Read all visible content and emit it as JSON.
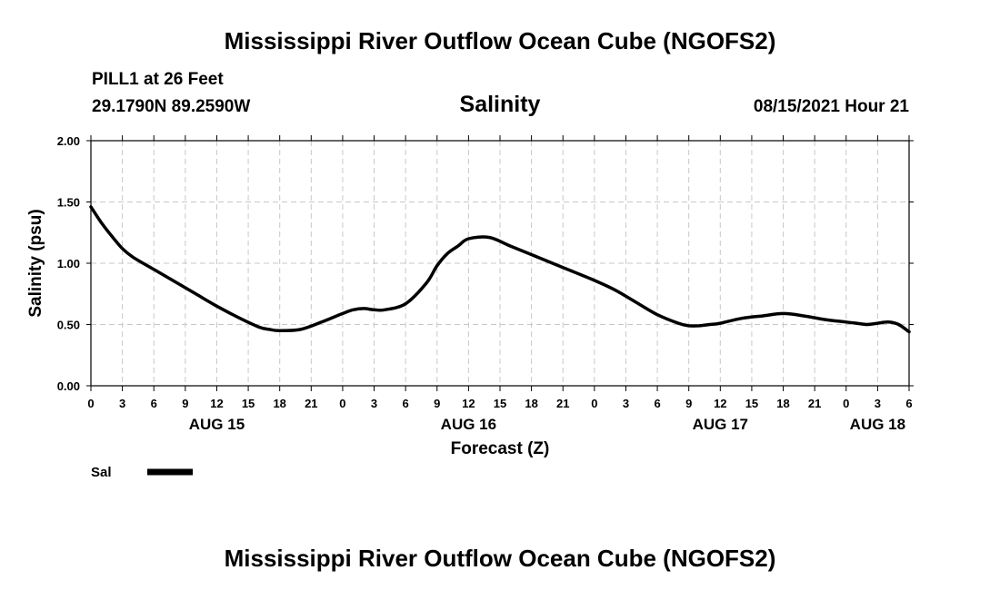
{
  "header": {
    "title": "Mississippi River Outflow Ocean Cube (NGOFS2)",
    "station": "PILL1 at 26 Feet",
    "coords": "29.1790N  89.2590W",
    "variable": "Salinity",
    "datetime": "08/15/2021 Hour 21"
  },
  "footer": {
    "title": "Mississippi River Outflow Ocean Cube (NGOFS2)"
  },
  "chart_data": {
    "type": "line",
    "title": "Salinity",
    "xlabel": "Forecast (Z)",
    "ylabel": "Salinity (psu)",
    "ylim": [
      0,
      2
    ],
    "yticks": [
      "0.00",
      "0.50",
      "1.00",
      "1.50",
      "2.00"
    ],
    "xlim": [
      0,
      78
    ],
    "xtick_hours": [
      0,
      3,
      6,
      9,
      12,
      15,
      18,
      21,
      24,
      27,
      30,
      33,
      36,
      39,
      42,
      45,
      48,
      51,
      54,
      57,
      60,
      63,
      66,
      69,
      72,
      75,
      78
    ],
    "xtick_labels": [
      "0",
      "3",
      "6",
      "9",
      "12",
      "15",
      "18",
      "21",
      "0",
      "3",
      "6",
      "9",
      "12",
      "15",
      "18",
      "21",
      "0",
      "3",
      "6",
      "9",
      "12",
      "15",
      "18",
      "21",
      "0",
      "3",
      "6"
    ],
    "date_labels": [
      {
        "hour": 12,
        "label": "AUG 15"
      },
      {
        "hour": 36,
        "label": "AUG 16"
      },
      {
        "hour": 60,
        "label": "AUG 17"
      },
      {
        "hour": 75,
        "label": "AUG 18"
      }
    ],
    "grid": true,
    "series": [
      {
        "name": "Sal",
        "color": "#000000",
        "x": [
          0,
          1,
          2,
          3,
          4,
          6,
          8,
          10,
          12,
          14,
          16,
          17,
          18,
          20,
          22,
          24,
          25,
          26,
          27,
          28,
          30,
          32,
          33,
          34,
          35,
          36,
          38,
          40,
          42,
          44,
          46,
          48,
          50,
          52,
          54,
          56,
          57,
          58,
          59,
          60,
          62,
          64,
          66,
          68,
          70,
          72,
          73,
          74,
          75,
          76,
          77,
          78
        ],
        "y": [
          1.46,
          1.33,
          1.22,
          1.12,
          1.05,
          0.95,
          0.85,
          0.75,
          0.65,
          0.56,
          0.48,
          0.46,
          0.45,
          0.46,
          0.52,
          0.59,
          0.62,
          0.63,
          0.62,
          0.62,
          0.67,
          0.84,
          0.98,
          1.08,
          1.14,
          1.2,
          1.21,
          1.14,
          1.07,
          1.0,
          0.93,
          0.86,
          0.78,
          0.68,
          0.58,
          0.51,
          0.49,
          0.49,
          0.5,
          0.51,
          0.55,
          0.57,
          0.59,
          0.57,
          0.54,
          0.52,
          0.51,
          0.5,
          0.51,
          0.52,
          0.5,
          0.44
        ]
      }
    ]
  },
  "legend": {
    "entries": [
      {
        "label": "Sal",
        "color": "#000000"
      }
    ]
  }
}
